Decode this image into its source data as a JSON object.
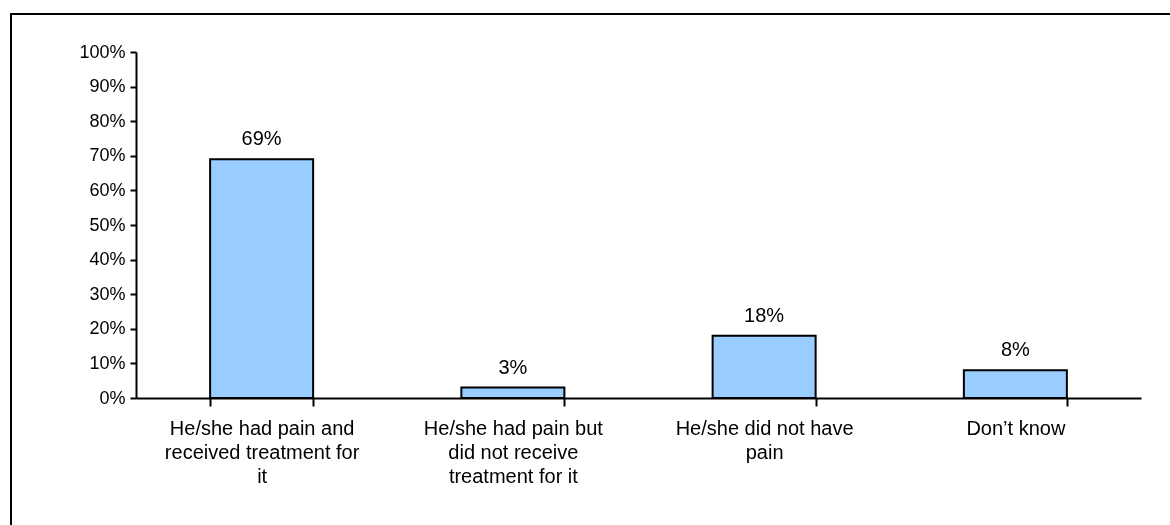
{
  "chart_data": {
    "type": "bar",
    "categories": [
      "He/she had pain and received treatment for it",
      "He/she had pain but did not receive treatment for it",
      "He/she did not have pain",
      "Don’t know"
    ],
    "values": [
      69,
      3,
      18,
      8
    ],
    "value_labels": [
      "69%",
      "3%",
      "18%",
      "8%"
    ],
    "color": "#99ccff",
    "ylim": [
      0,
      100
    ],
    "yticks": [
      {
        "value": 0,
        "label": "0%"
      },
      {
        "value": 10,
        "label": "10%"
      },
      {
        "value": 20,
        "label": "20%"
      },
      {
        "value": 30,
        "label": "30%"
      },
      {
        "value": 40,
        "label": "40%"
      },
      {
        "value": 50,
        "label": "50%"
      },
      {
        "value": 60,
        "label": "60%"
      },
      {
        "value": 70,
        "label": "70%"
      },
      {
        "value": 80,
        "label": "80%"
      },
      {
        "value": 90,
        "label": "90%"
      },
      {
        "value": 100,
        "label": "100%"
      }
    ],
    "grid": false
  }
}
